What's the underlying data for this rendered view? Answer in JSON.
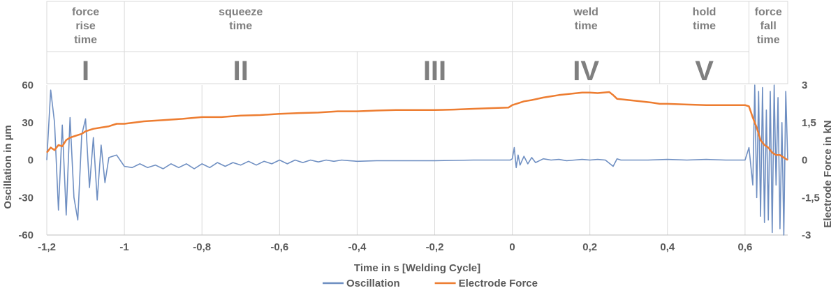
{
  "chart_data": {
    "type": "line",
    "xlabel": "Time in s [Welding Cycle]",
    "ylabel_left": "Oscillation in µm",
    "ylabel_right": "Electrode Force in kN",
    "xlim": [
      -1.2,
      0.71
    ],
    "ylim_left": [
      -60,
      60
    ],
    "ylim_right": [
      -3,
      3
    ],
    "x_ticks": [
      "-1,2",
      "-1",
      "-0,8",
      "-0,6",
      "-0,4",
      "-0,2",
      "0",
      "0,2",
      "0,4",
      "0,6"
    ],
    "x_tick_values": [
      -1.2,
      -1.0,
      -0.8,
      -0.6,
      -0.4,
      -0.2,
      0.0,
      0.2,
      0.4,
      0.6
    ],
    "y_left_ticks": [
      "60",
      "30",
      "0",
      "-30",
      "-60"
    ],
    "y_left_tick_values": [
      60,
      30,
      0,
      -30,
      -60
    ],
    "y_right_ticks": [
      "3",
      "1,5",
      "0",
      "-1,5",
      "-3"
    ],
    "y_right_tick_values": [
      3,
      1.5,
      0,
      -1.5,
      -3
    ],
    "grid": "vertical",
    "legend_position": "bottom",
    "phases": [
      {
        "title": "force\nrise\ntime",
        "numeral": "I",
        "x_start": -1.2,
        "x_end": -1.0
      },
      {
        "title": "squeeze\ntime",
        "numeral": "II",
        "x_start": -1.0,
        "x_end": -0.4
      },
      {
        "title": "",
        "numeral": "III",
        "x_start": -0.4,
        "x_end": 0.0
      },
      {
        "title": "weld\ntime",
        "numeral": "IV",
        "x_start": 0.0,
        "x_end": 0.38
      },
      {
        "title": "hold\ntime",
        "numeral": "V",
        "x_start": 0.38,
        "x_end": 0.61
      },
      {
        "title": "force\nfall\ntime",
        "numeral": "",
        "x_start": 0.61,
        "x_end": 0.71
      }
    ],
    "series": [
      {
        "name": "Oscillation",
        "axis": "left",
        "color": "#6f8fc2",
        "x": [
          -1.2,
          -1.19,
          -1.18,
          -1.17,
          -1.16,
          -1.15,
          -1.14,
          -1.13,
          -1.12,
          -1.11,
          -1.1,
          -1.09,
          -1.08,
          -1.07,
          -1.06,
          -1.05,
          -1.04,
          -1.02,
          -1.0,
          -0.98,
          -0.96,
          -0.94,
          -0.92,
          -0.9,
          -0.88,
          -0.86,
          -0.84,
          -0.82,
          -0.8,
          -0.78,
          -0.76,
          -0.74,
          -0.72,
          -0.7,
          -0.68,
          -0.66,
          -0.64,
          -0.62,
          -0.6,
          -0.58,
          -0.56,
          -0.54,
          -0.52,
          -0.5,
          -0.48,
          -0.46,
          -0.44,
          -0.42,
          -0.4,
          -0.35,
          -0.3,
          -0.25,
          -0.2,
          -0.15,
          -0.1,
          -0.05,
          -0.005,
          0.0,
          0.005,
          0.01,
          0.015,
          0.02,
          0.03,
          0.04,
          0.05,
          0.06,
          0.08,
          0.1,
          0.12,
          0.14,
          0.16,
          0.18,
          0.2,
          0.22,
          0.24,
          0.26,
          0.27,
          0.28,
          0.3,
          0.35,
          0.4,
          0.45,
          0.5,
          0.55,
          0.6,
          0.61,
          0.62,
          0.625,
          0.63,
          0.635,
          0.64,
          0.645,
          0.65,
          0.655,
          0.66,
          0.665,
          0.67,
          0.675,
          0.68,
          0.685,
          0.69,
          0.695,
          0.7,
          0.705,
          0.71
        ],
        "values": [
          0,
          56,
          30,
          -40,
          28,
          -44,
          34,
          -30,
          -48,
          20,
          33,
          -22,
          18,
          -32,
          12,
          -18,
          2,
          4,
          -5,
          -6,
          -3,
          -6,
          -4,
          -7,
          -3,
          -6,
          -3,
          -7,
          -3,
          -6,
          -2,
          -5,
          -2,
          -4,
          -1,
          -4,
          -1,
          -3,
          0,
          -3,
          0,
          -2,
          0,
          -1.5,
          0,
          -1,
          0,
          -0.5,
          -1,
          -0.5,
          -0.5,
          -0.5,
          -0.5,
          -0.3,
          0,
          0,
          0,
          1,
          10,
          -6,
          4,
          -4,
          3,
          -3,
          2,
          -2,
          1,
          0,
          0.5,
          -0.5,
          0,
          0.5,
          0,
          0.5,
          0,
          -5,
          1,
          0,
          0,
          0,
          0.5,
          0,
          0.5,
          0,
          0,
          10,
          -20,
          60,
          -30,
          55,
          -45,
          58,
          -50,
          40,
          -48,
          55,
          -58,
          60,
          -20,
          50,
          -55,
          30,
          -60,
          55,
          0
        ]
      },
      {
        "name": "Electrode Force",
        "axis": "right",
        "color": "#ed7d31",
        "x": [
          -1.2,
          -1.19,
          -1.18,
          -1.17,
          -1.16,
          -1.15,
          -1.14,
          -1.13,
          -1.12,
          -1.11,
          -1.1,
          -1.08,
          -1.06,
          -1.04,
          -1.02,
          -1.0,
          -0.95,
          -0.9,
          -0.85,
          -0.8,
          -0.75,
          -0.7,
          -0.65,
          -0.6,
          -0.55,
          -0.5,
          -0.45,
          -0.4,
          -0.35,
          -0.3,
          -0.25,
          -0.2,
          -0.15,
          -0.1,
          -0.05,
          -0.01,
          0.0,
          0.01,
          0.03,
          0.05,
          0.08,
          0.1,
          0.12,
          0.15,
          0.18,
          0.2,
          0.22,
          0.25,
          0.26,
          0.27,
          0.3,
          0.33,
          0.36,
          0.38,
          0.4,
          0.45,
          0.5,
          0.55,
          0.6,
          0.61,
          0.62,
          0.63,
          0.64,
          0.65,
          0.66,
          0.67,
          0.68,
          0.69,
          0.7,
          0.71
        ],
        "values": [
          0.3,
          0.5,
          0.4,
          0.6,
          0.55,
          0.8,
          0.9,
          0.95,
          1.0,
          1.05,
          1.15,
          1.25,
          1.3,
          1.35,
          1.45,
          1.45,
          1.55,
          1.6,
          1.65,
          1.72,
          1.72,
          1.78,
          1.8,
          1.85,
          1.88,
          1.9,
          1.95,
          1.95,
          1.98,
          2.0,
          2.0,
          2.0,
          2.02,
          2.05,
          2.08,
          2.1,
          2.2,
          2.25,
          2.35,
          2.4,
          2.5,
          2.55,
          2.6,
          2.65,
          2.7,
          2.7,
          2.68,
          2.72,
          2.6,
          2.45,
          2.4,
          2.35,
          2.3,
          2.25,
          2.25,
          2.22,
          2.2,
          2.2,
          2.2,
          2.15,
          1.7,
          1.3,
          0.8,
          0.6,
          0.5,
          0.3,
          0.2,
          0.2,
          0.1,
          0.0
        ]
      }
    ]
  }
}
